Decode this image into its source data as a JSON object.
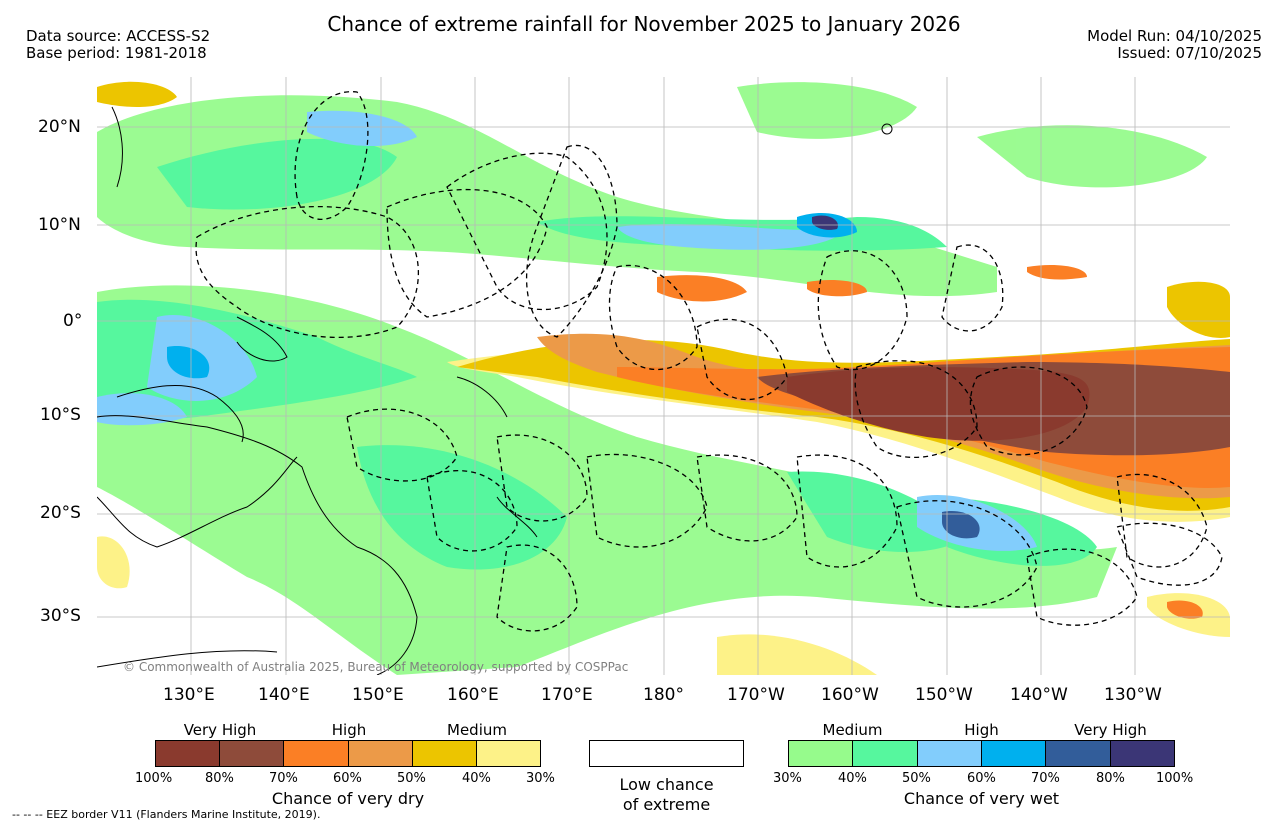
{
  "header": {
    "title": "Chance of extreme rainfall for November 2025 to January 2026",
    "data_source": "Data source: ACCESS-S2",
    "base_period": "Base period: 1981-2018",
    "model_run": "Model Run: 04/10/2025",
    "issued": "Issued: 07/10/2025"
  },
  "map": {
    "lat_ticks": [
      "20°N",
      "10°N",
      "0°",
      "10°S",
      "20°S",
      "30°S"
    ],
    "lon_ticks": [
      "130°E",
      "140°E",
      "150°E",
      "160°E",
      "170°E",
      "180°",
      "170°W",
      "160°W",
      "150°W",
      "140°W",
      "130°W"
    ],
    "copyright": "© Commonwealth of Australia 2025, Bureau of Meteorology, supported by COSPPac"
  },
  "legend_dry": {
    "levels": [
      "Very High",
      "High",
      "Medium"
    ],
    "percents": [
      "100%",
      "80%",
      "70%",
      "60%",
      "50%",
      "40%",
      "30%"
    ],
    "colors": [
      "#8a3a2e",
      "#8e4b3a",
      "#fb7f25",
      "#ec9a48",
      "#ecc500",
      "#fdf288"
    ],
    "caption": "Chance of very dry"
  },
  "legend_low": {
    "line1": "Low chance",
    "line2": "of extreme"
  },
  "legend_wet": {
    "levels": [
      "Medium",
      "High",
      "Very High"
    ],
    "percents": [
      "30%",
      "40%",
      "50%",
      "60%",
      "70%",
      "80%",
      "100%"
    ],
    "colors": [
      "#96fb8c",
      "#56f79e",
      "#82cdfc",
      "#00b0ee",
      "#325d9a",
      "#3b3676"
    ],
    "caption": "Chance of very wet"
  },
  "footer": {
    "eez_note": "--  --  -- EEZ border V11 (Flanders Marine Institute, 2019)."
  }
}
